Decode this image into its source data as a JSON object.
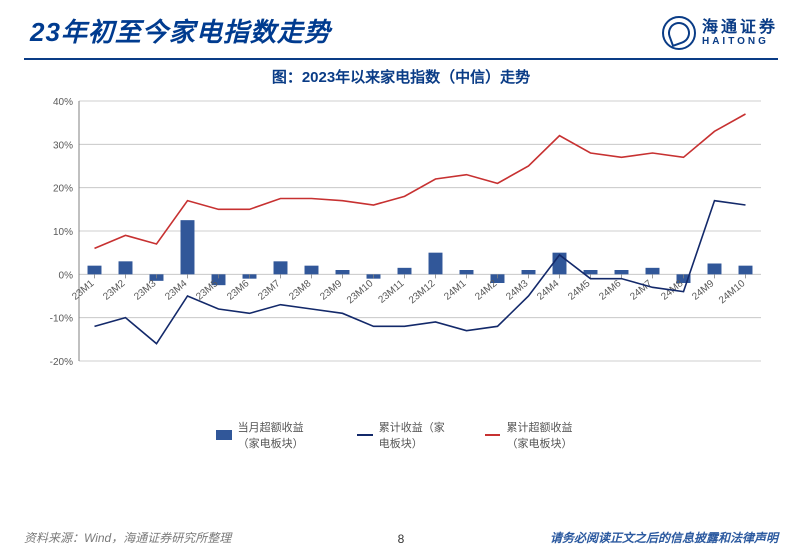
{
  "header": {
    "title": "23年初至今家电指数走势",
    "logo_cn": "海通证券",
    "logo_en": "HAITONG"
  },
  "chart": {
    "title": "图：2023年以来家电指数（中信）走势",
    "type": "combo-bar-line",
    "background_color": "#ffffff",
    "grid_color": "#bfbfbf",
    "axis_color": "#808080",
    "label_fontsize": 10,
    "label_color": "#595959",
    "categories": [
      "23M1",
      "23M2",
      "23M3",
      "23M4",
      "23M5",
      "23M6",
      "23M7",
      "23M8",
      "23M9",
      "23M10",
      "23M11",
      "23M12",
      "24M1",
      "24M2",
      "24M3",
      "24M4",
      "24M5",
      "24M6",
      "24M7",
      "24M8",
      "24M9",
      "24M10"
    ],
    "ylim": [
      -20,
      40
    ],
    "ytick_step": 10,
    "ytick_format_suffix": "%",
    "series": {
      "bar": {
        "label": "当月超额收益（家电板块）",
        "color": "#315799",
        "bar_width": 0.45,
        "values": [
          2,
          3,
          -1.5,
          12.5,
          -2.5,
          -1,
          3,
          2,
          1,
          -1,
          1.5,
          5,
          1,
          -2,
          1,
          5,
          1,
          1,
          1.5,
          -2,
          2.5,
          2
        ]
      },
      "line1": {
        "label": "累计收益（家电板块）",
        "color": "#13296a",
        "line_width": 1.6,
        "values": [
          -12,
          -10,
          -16,
          -5,
          -8,
          -9,
          -7,
          -8,
          -9,
          -12,
          -12,
          -11,
          -13,
          -12,
          -5,
          4.5,
          -1,
          -1,
          -3,
          -4,
          17,
          16
        ]
      },
      "line2": {
        "label": "累计超额收益（家电板块）",
        "color": "#c73131",
        "line_width": 1.6,
        "values": [
          6,
          9,
          7,
          17,
          15,
          15,
          17.5,
          17.5,
          17,
          16,
          18,
          22,
          23,
          21,
          25,
          32,
          28,
          27,
          28,
          27,
          33,
          37
        ]
      }
    }
  },
  "legend": {
    "bar": "当月超额收益（家电板块）",
    "line1": "累计收益（家电板块）",
    "line2": "累计超额收益（家电板块）"
  },
  "footer": {
    "source": "资料来源：Wind，海通证券研究所整理",
    "page": "8",
    "disclaimer": "请务必阅读正文之后的信息披露和法律声明"
  },
  "colors": {
    "brand": "#0a3c86",
    "title": "#003b8f"
  }
}
